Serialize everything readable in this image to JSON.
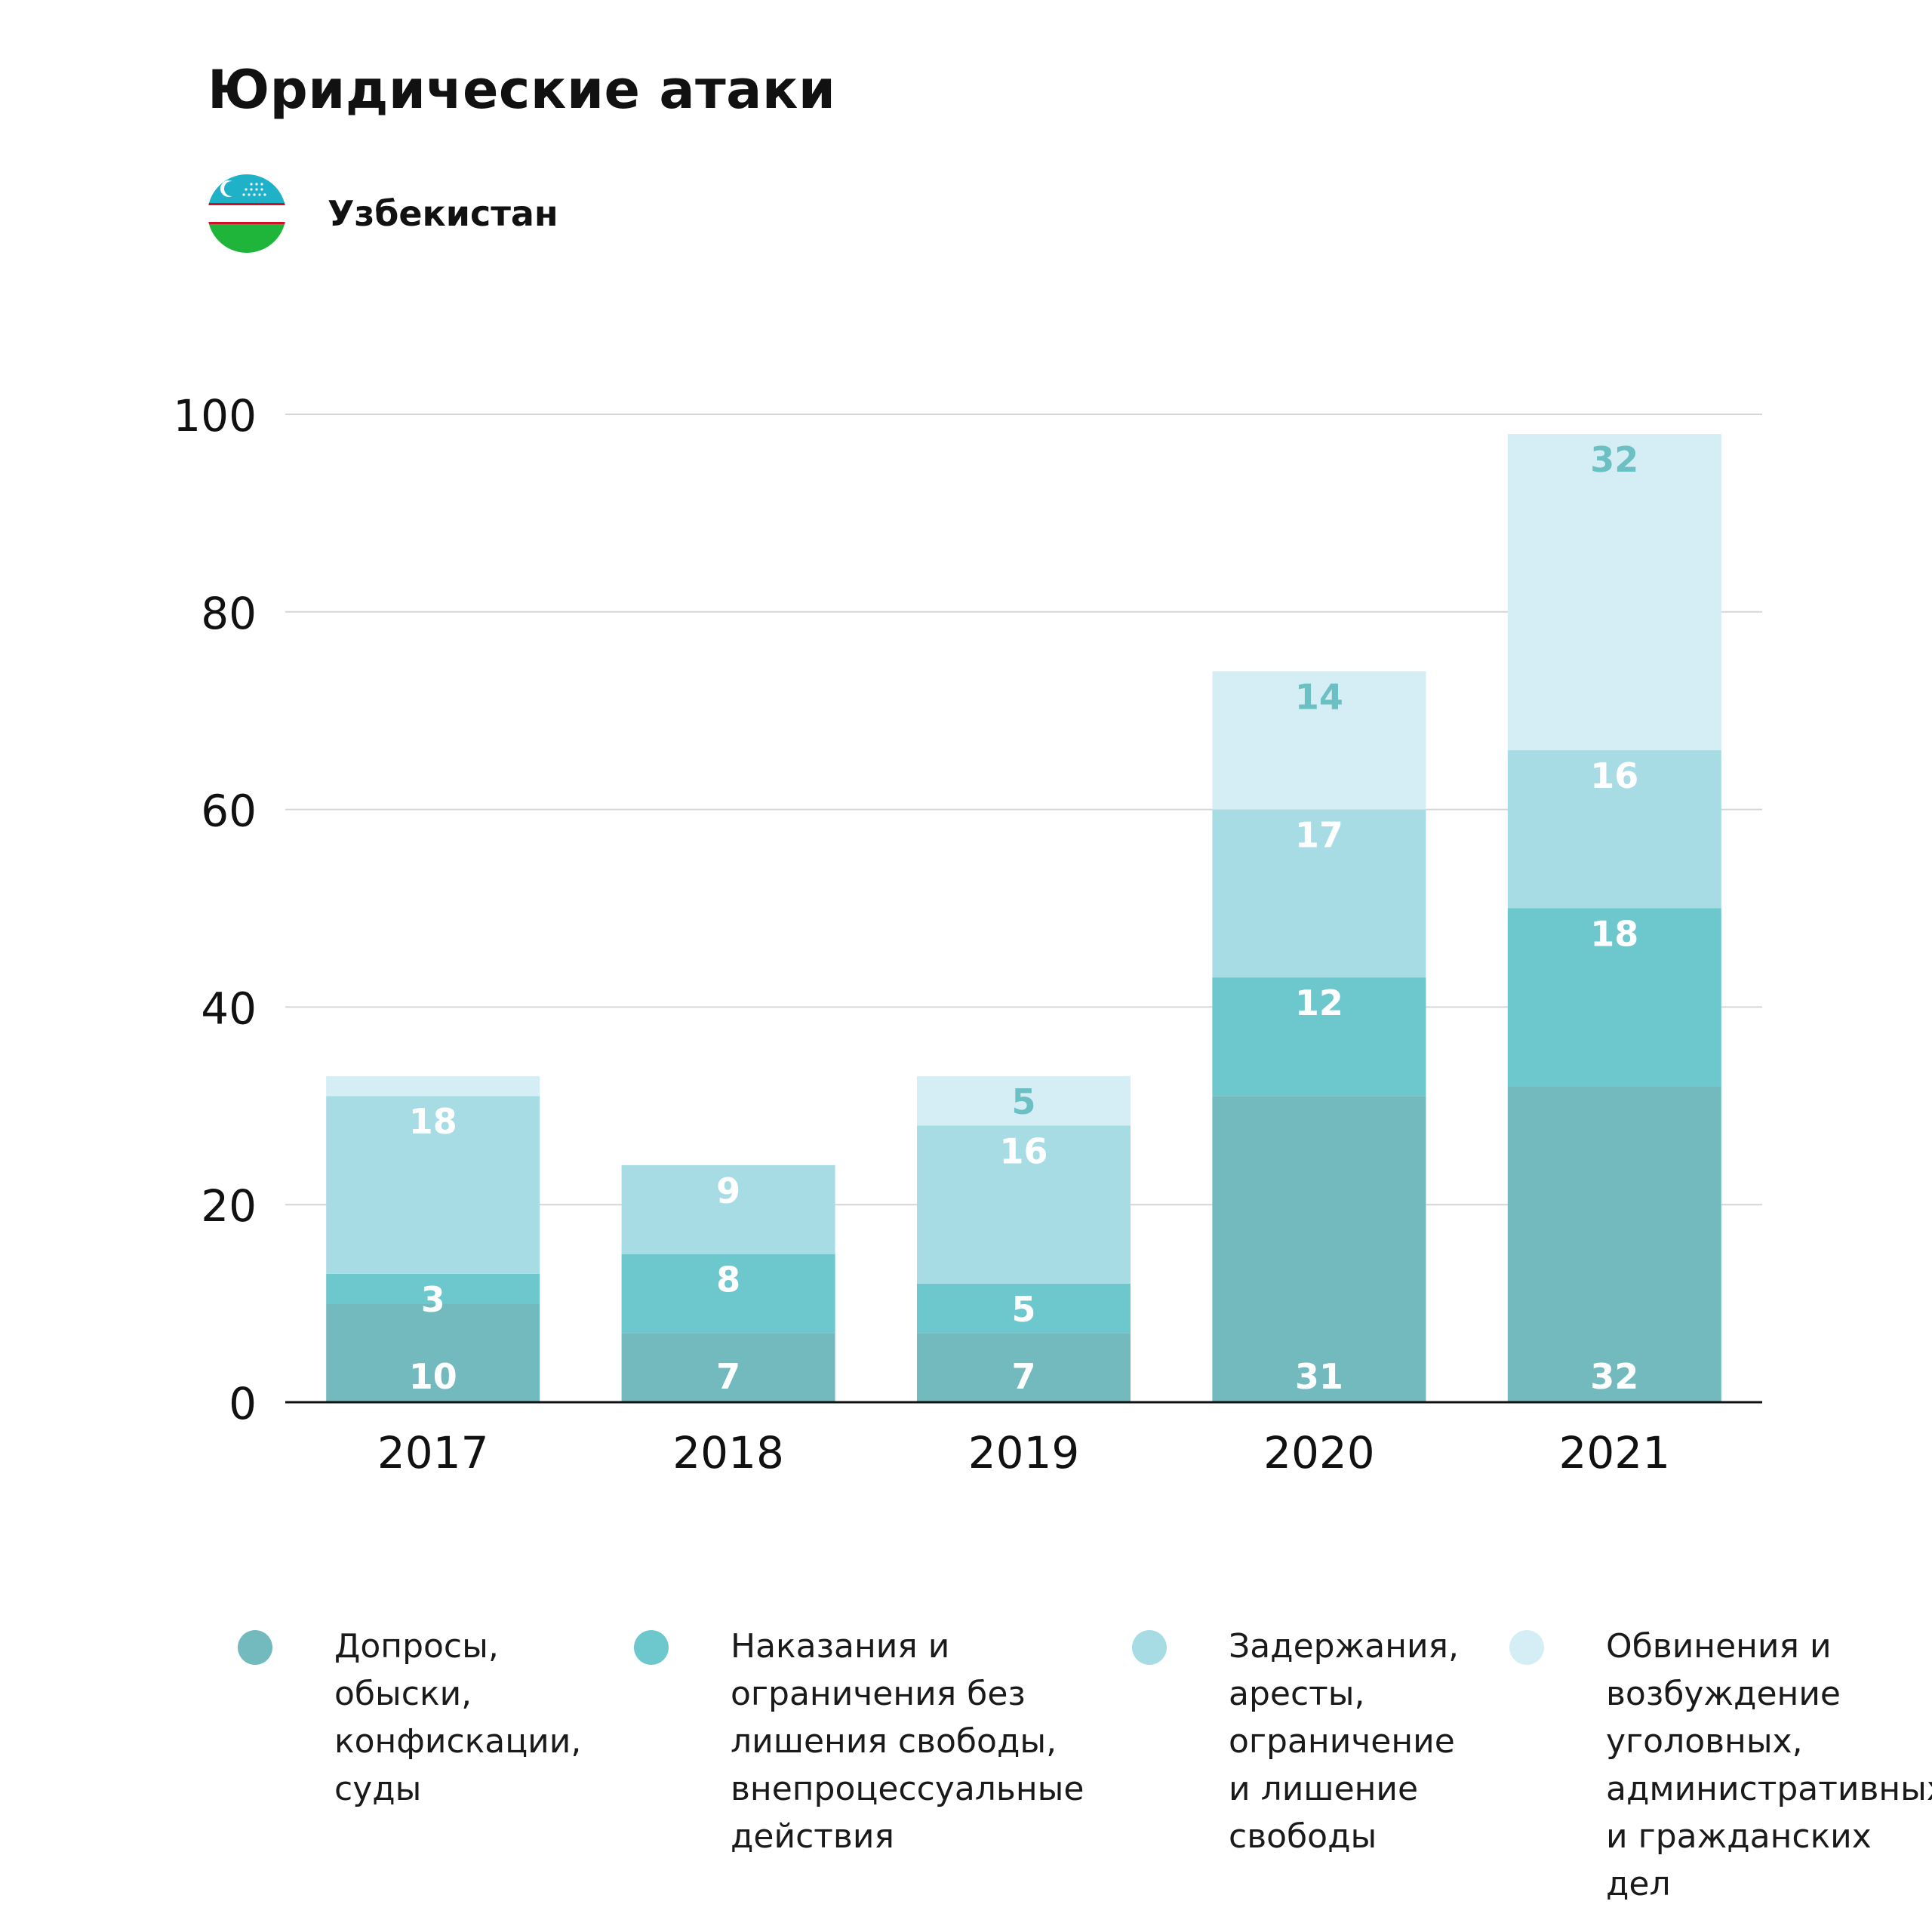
{
  "header": {
    "title": "Юридические атаки",
    "country": "Узбекистан"
  },
  "flag": {
    "icon": "uzbekistan-flag-icon",
    "colors": {
      "blue": "#1EB1C8",
      "white": "#FFFFFF",
      "red": "#CE1126",
      "green": "#1EB53A"
    }
  },
  "chart_data": {
    "type": "bar",
    "stacked": true,
    "categories": [
      "2017",
      "2018",
      "2019",
      "2020",
      "2021"
    ],
    "ylim": [
      0,
      100
    ],
    "yticks": [
      0,
      20,
      40,
      60,
      80,
      100
    ],
    "grid": true,
    "legend_position": "bottom",
    "series": [
      {
        "name": "Допросы,\nобыски,\nконфискации,\nсуды",
        "color": "#72BABD",
        "values": [
          10,
          7,
          7,
          31,
          32
        ],
        "labels": [
          "10",
          "7",
          "7",
          "31",
          "32"
        ],
        "label_color": "#ffffff"
      },
      {
        "name": "Наказания и\nограничения без\nлишения свободы,\nвнепроцессуальные\nдействия",
        "color": "#6CC8CC",
        "values": [
          3,
          8,
          5,
          12,
          18
        ],
        "labels": [
          "3",
          "8",
          "5",
          "12",
          "18"
        ],
        "label_color": "#ffffff"
      },
      {
        "name": "Задержания,\nаресты,\nограничение\nи лишение\nсвободы",
        "color": "#A8DCE5",
        "values": [
          18,
          9,
          16,
          17,
          16
        ],
        "labels": [
          "18",
          "9",
          "16",
          "17",
          "16"
        ],
        "label_color": "#ffffff"
      },
      {
        "name": "Обвинения и\nвозбуждение\nуголовных,\nадминистративных\nи гражданских дел",
        "color": "#D5EDF5",
        "values": [
          2,
          0,
          5,
          14,
          32
        ],
        "labels": [
          "",
          "",
          "5",
          "14",
          "32"
        ],
        "label_color": "#6CC0C4"
      }
    ]
  }
}
